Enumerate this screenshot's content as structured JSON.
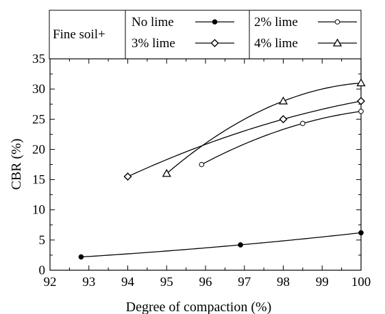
{
  "chart_data": {
    "type": "scatter",
    "xlabel": "Degree of compaction (%)",
    "ylabel": "CBR (%)",
    "xlim": [
      92,
      100
    ],
    "ylim": [
      0,
      35
    ],
    "xticks": [
      "92",
      "93",
      "94",
      "95",
      "96",
      "97",
      "98",
      "99",
      "100"
    ],
    "yticks": [
      "0",
      "5",
      "10",
      "15",
      "20",
      "25",
      "30",
      "35"
    ],
    "grid": false,
    "legend": {
      "prefix": "Fine soil+",
      "placement": "top",
      "entries": [
        {
          "label": "No lime",
          "marker": "filled-circle"
        },
        {
          "label": "2% lime",
          "marker": "open-circle"
        },
        {
          "label": "3% lime",
          "marker": "open-diamond"
        },
        {
          "label": "4% lime",
          "marker": "open-triangle"
        }
      ]
    },
    "series": [
      {
        "name": "No lime",
        "marker": "filled-circle",
        "x": [
          92.8,
          96.9,
          100
        ],
        "y": [
          2.2,
          4.2,
          6.2
        ]
      },
      {
        "name": "2% lime",
        "marker": "open-circle",
        "x": [
          95.9,
          98.5,
          100
        ],
        "y": [
          17.5,
          24.3,
          26.3
        ]
      },
      {
        "name": "3% lime",
        "marker": "open-diamond",
        "x": [
          94,
          98,
          100
        ],
        "y": [
          15.5,
          25.0,
          28.0
        ]
      },
      {
        "name": "4% lime",
        "marker": "open-triangle",
        "x": [
          95,
          98,
          100
        ],
        "y": [
          16.0,
          28.0,
          31.0
        ]
      }
    ]
  }
}
